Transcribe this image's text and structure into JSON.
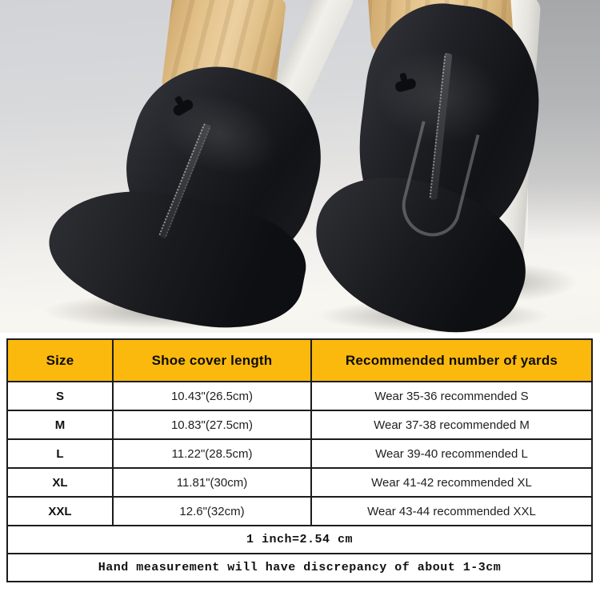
{
  "accent": {
    "table_header_bg": "#FBB90D",
    "table_border": "#1C1C1C",
    "table_text": "#111111"
  },
  "table": {
    "headers": [
      "Size",
      "Shoe cover length",
      "Recommended number of yards"
    ],
    "rows": [
      {
        "size": "S",
        "length": "10.43\"(26.5cm)",
        "recommended": "Wear 35-36 recommended S"
      },
      {
        "size": "M",
        "length": "10.83\"(27.5cm)",
        "recommended": "Wear 37-38 recommended M"
      },
      {
        "size": "L",
        "length": "11.22\"(28.5cm)",
        "recommended": "Wear 39-40 recommended L"
      },
      {
        "size": "XL",
        "length": "11.81\"(30cm)",
        "recommended": "Wear 41-42 recommended XL"
      },
      {
        "size": "XXL",
        "length": "12.6\"(32cm)",
        "recommended": "Wear 43-44 recommended XXL"
      }
    ],
    "notes": [
      "1 inch=2.54 cm",
      "Hand measurement will have discrepancy of about 1-3cm"
    ]
  }
}
